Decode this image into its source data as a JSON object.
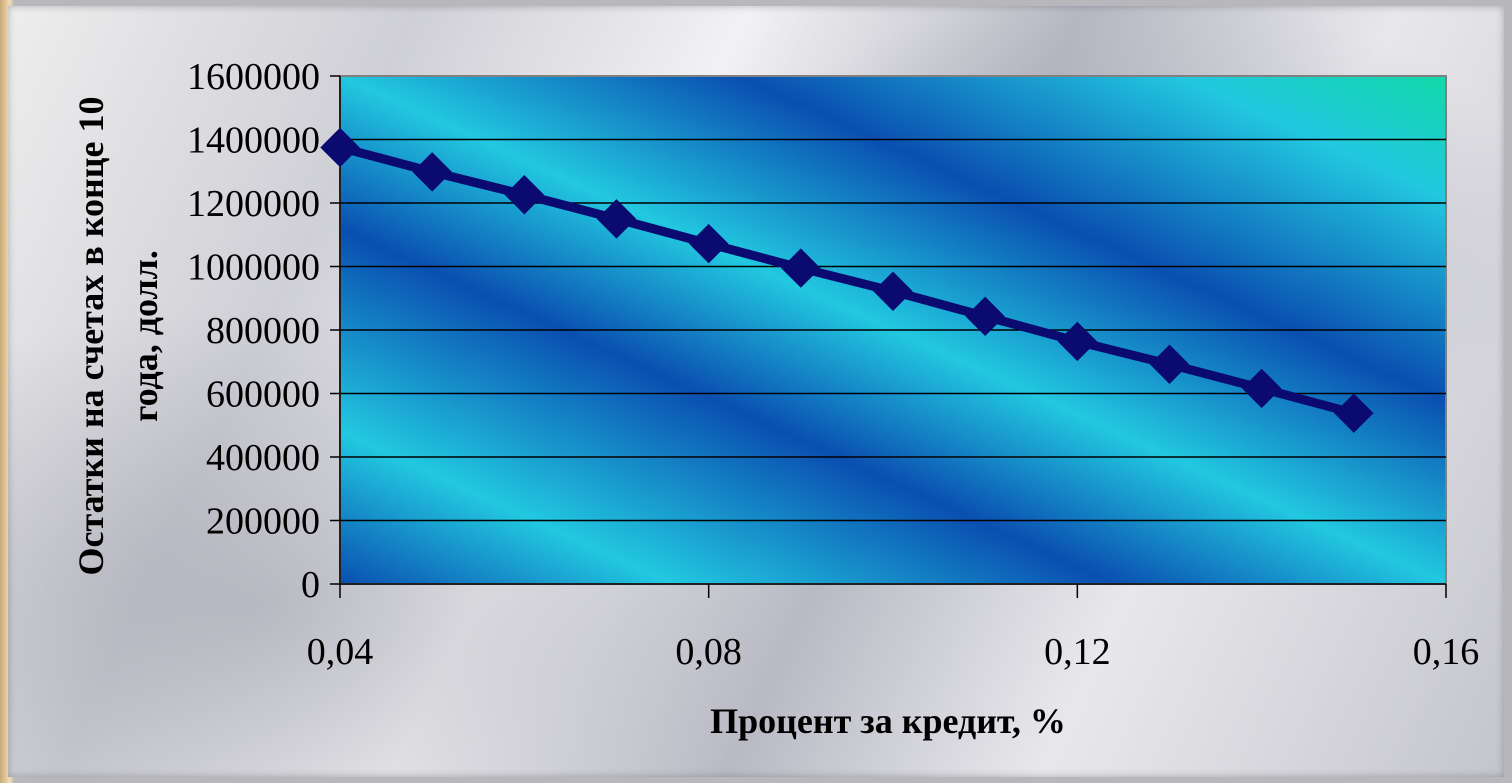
{
  "chart_data": {
    "type": "line",
    "title": "",
    "xlabel": "Процент за кредит, %",
    "ylabel": "Остатки на счетах в конце 10 года, долл.",
    "ylim": [
      0,
      1600000
    ],
    "xlim": [
      0.04,
      0.16
    ],
    "yticks": [
      "0",
      "200000",
      "400000",
      "600000",
      "800000",
      "1000000",
      "1200000",
      "1400000",
      "1600000"
    ],
    "xticks": [
      "0,04",
      "0,08",
      "0,12",
      "0,16"
    ],
    "grid": true,
    "legend": "none",
    "series": [
      {
        "x": [
          0.04,
          0.05,
          0.06,
          0.07,
          0.08,
          0.09,
          0.1,
          0.11,
          0.12,
          0.13,
          0.14,
          0.15
        ],
        "values": [
          1375000,
          1298000,
          1226000,
          1150000,
          1072000,
          995000,
          922000,
          843000,
          764000,
          692000,
          616000,
          538000
        ]
      }
    ],
    "colors": {
      "line": "#0a0a70",
      "marker": "#0a0a70",
      "plot_bg_dark": "#0a4fb0",
      "plot_bg_light": "#22c8e0",
      "plot_bg_corner": "#11d9a8"
    }
  }
}
